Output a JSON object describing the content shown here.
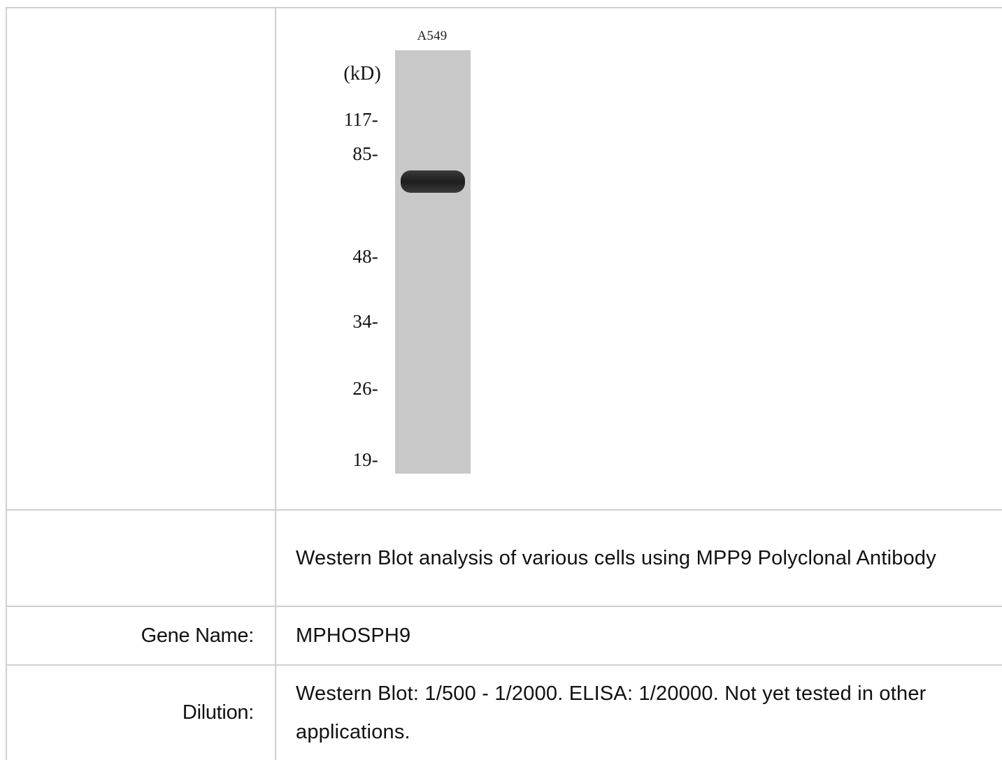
{
  "blot": {
    "lane_label": "A549",
    "unit_label": "(kD)",
    "markers": [
      "117-",
      "85-",
      "48-",
      "34-",
      "26-",
      "19-"
    ]
  },
  "caption": {
    "text": "Western Blot analysis of various cells using MPP9 Polyclonal Antibody"
  },
  "gene": {
    "label": "Gene Name:",
    "value": "MPHOSPH9"
  },
  "dilution": {
    "label": "Dilution:",
    "value": "Western Blot: 1/500 - 1/2000. ELISA: 1/20000. Not yet tested in other applications."
  }
}
